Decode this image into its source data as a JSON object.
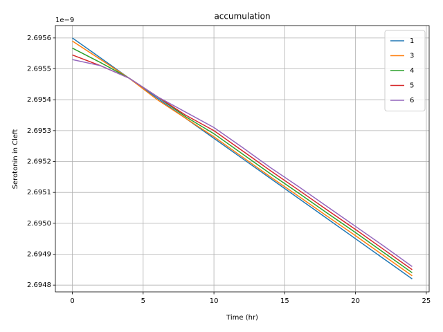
{
  "chart_data": {
    "type": "line",
    "title": "accumulation",
    "x_label": "Time (hr)",
    "y_label": "Serotonin in Cleft",
    "y_offset_label": "1e−9",
    "x": [
      0,
      2,
      4,
      6,
      8,
      10,
      12,
      14,
      16,
      18,
      20,
      22,
      24
    ],
    "series": [
      {
        "name": "1",
        "color": "#1f77b4",
        "values": [
          2.6956,
          2.695535,
          2.69547,
          2.695405,
          2.69534,
          2.695275,
          2.69521,
          2.695145,
          2.69508,
          2.695015,
          2.69495,
          2.694885,
          2.69482
        ]
      },
      {
        "name": "3",
        "color": "#ff7f0e",
        "values": [
          2.69559,
          2.69553,
          2.69547,
          2.6954,
          2.69534,
          2.69528,
          2.695215,
          2.69515,
          2.695087,
          2.695023,
          2.69496,
          2.694895,
          2.69483
        ]
      },
      {
        "name": "4",
        "color": "#2ca02c",
        "values": [
          2.695567,
          2.69552,
          2.69547,
          2.69541,
          2.695345,
          2.69529,
          2.695225,
          2.69516,
          2.695097,
          2.695033,
          2.69497,
          2.694905,
          2.69484
        ]
      },
      {
        "name": "5",
        "color": "#d62728",
        "values": [
          2.695545,
          2.69551,
          2.69547,
          2.69541,
          2.69535,
          2.6953,
          2.695235,
          2.69517,
          2.695107,
          2.695043,
          2.69498,
          2.694915,
          2.69485
        ]
      },
      {
        "name": "6",
        "color": "#9467bd",
        "values": [
          2.69553,
          2.69551,
          2.69547,
          2.69541,
          2.69536,
          2.69531,
          2.695246,
          2.69518,
          2.695118,
          2.695054,
          2.69499,
          2.694926,
          2.69486
        ]
      }
    ],
    "xlim": [
      -1.2,
      25.2
    ],
    "xticks": [
      0,
      5,
      10,
      15,
      20,
      25
    ],
    "ylim": [
      2.694778,
      2.69564
    ],
    "yticks": [
      2.6948,
      2.6949,
      {
        "value": 2.695,
        "label": "2.6950"
      },
      2.6951,
      2.6952,
      2.6953,
      2.6954,
      2.6955,
      2.6956
    ],
    "grid": true,
    "legend": "upper right"
  }
}
